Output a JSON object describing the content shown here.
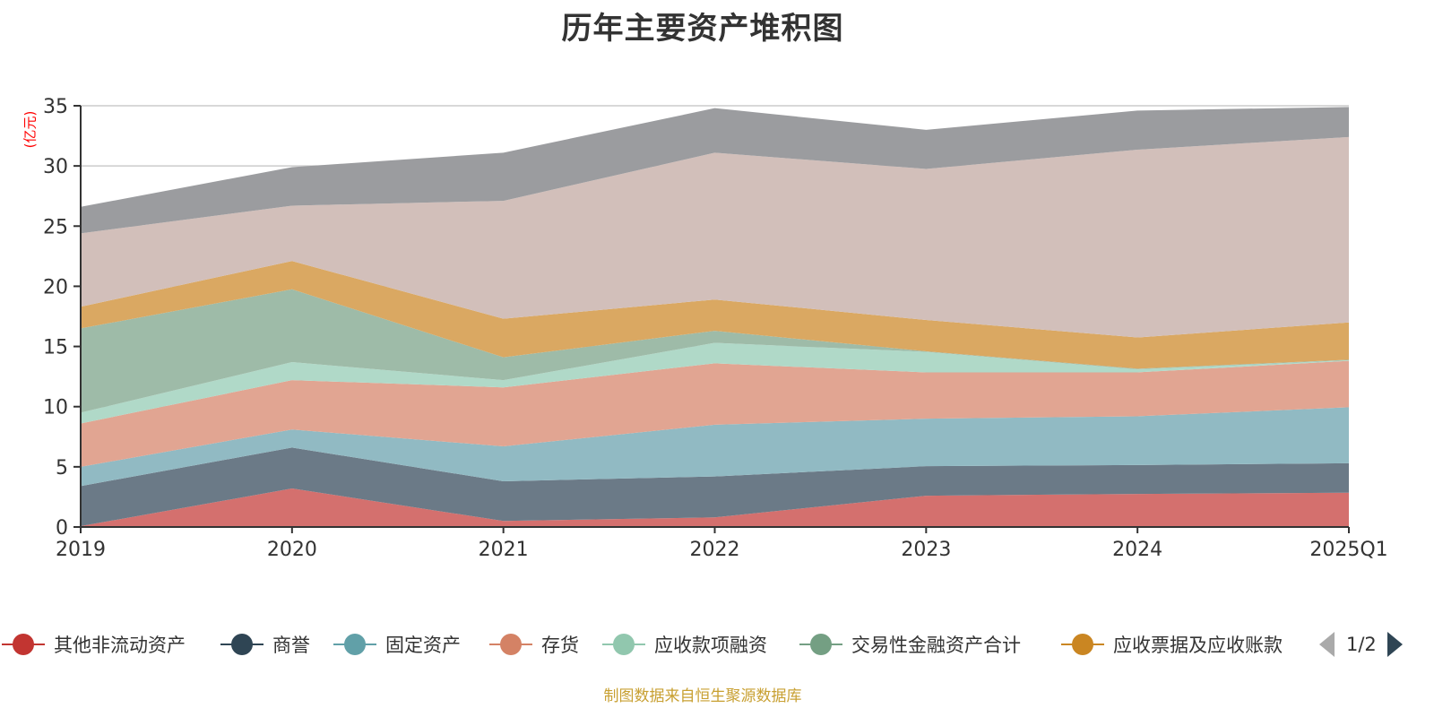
{
  "chart_data": {
    "type": "area",
    "stacked": true,
    "title": "历年主要资产堆积图",
    "ylabel": "(亿元)",
    "xlabel": "",
    "categories": [
      "2019",
      "2020",
      "2021",
      "2022",
      "2023",
      "2024",
      "2025Q1"
    ],
    "ylim": [
      0,
      35
    ],
    "yticks": [
      0,
      5,
      10,
      15,
      20,
      25,
      30,
      35
    ],
    "grid": true,
    "legend_position": "bottom",
    "legend_page": "1/2",
    "series": [
      {
        "name": "其他非流动资产",
        "color": "#c23531",
        "fill": "#d4706e",
        "values": [
          0.07,
          3.2,
          0.5,
          0.8,
          2.6,
          2.75,
          2.85
        ]
      },
      {
        "name": "商誉",
        "color": "#2f4554",
        "fill": "#6b7a87",
        "values": [
          3.33,
          3.4,
          3.3,
          3.4,
          2.45,
          2.4,
          2.45
        ]
      },
      {
        "name": "固定资产",
        "color": "#61a0a8",
        "fill": "#91bac3",
        "values": [
          1.6,
          1.5,
          2.9,
          4.3,
          3.95,
          4.05,
          4.65
        ]
      },
      {
        "name": "存货",
        "color": "#d48265",
        "fill": "#e1a592",
        "values": [
          3.6,
          4.1,
          4.9,
          5.1,
          3.85,
          3.65,
          3.85
        ]
      },
      {
        "name": "应收款项融资",
        "color": "#91c7ae",
        "fill": "#b0d9c8",
        "values": [
          0.9,
          1.5,
          0.6,
          1.7,
          1.7,
          0.25,
          0.05
        ]
      },
      {
        "name": "交易性金融资产合计",
        "color": "#749f83",
        "fill": "#9ebba8",
        "values": [
          7.0,
          6.05,
          1.9,
          1.0,
          0.05,
          0.05,
          0.05
        ]
      },
      {
        "name": "应收票据及应收账款",
        "color": "#ca8622",
        "fill": "#daa862",
        "values": [
          1.8,
          2.35,
          3.2,
          2.6,
          2.6,
          2.6,
          3.1
        ]
      },
      {
        "name": "",
        "color": "#bda29a",
        "fill": "#d2bfba",
        "values": [
          6.1,
          4.6,
          9.8,
          12.2,
          12.55,
          15.6,
          15.4
        ]
      },
      {
        "name": "",
        "color": "#6e7074",
        "fill": "#9b9c9f",
        "values": [
          2.2,
          3.2,
          4.0,
          3.7,
          3.25,
          3.25,
          2.5
        ]
      }
    ]
  },
  "legend": {
    "visible_count": 7,
    "page_indicator": "1/2",
    "prev_icon": "triangle-left-icon",
    "next_icon": "triangle-right-icon"
  },
  "footer": {
    "source": "制图数据来自恒生聚源数据库"
  }
}
